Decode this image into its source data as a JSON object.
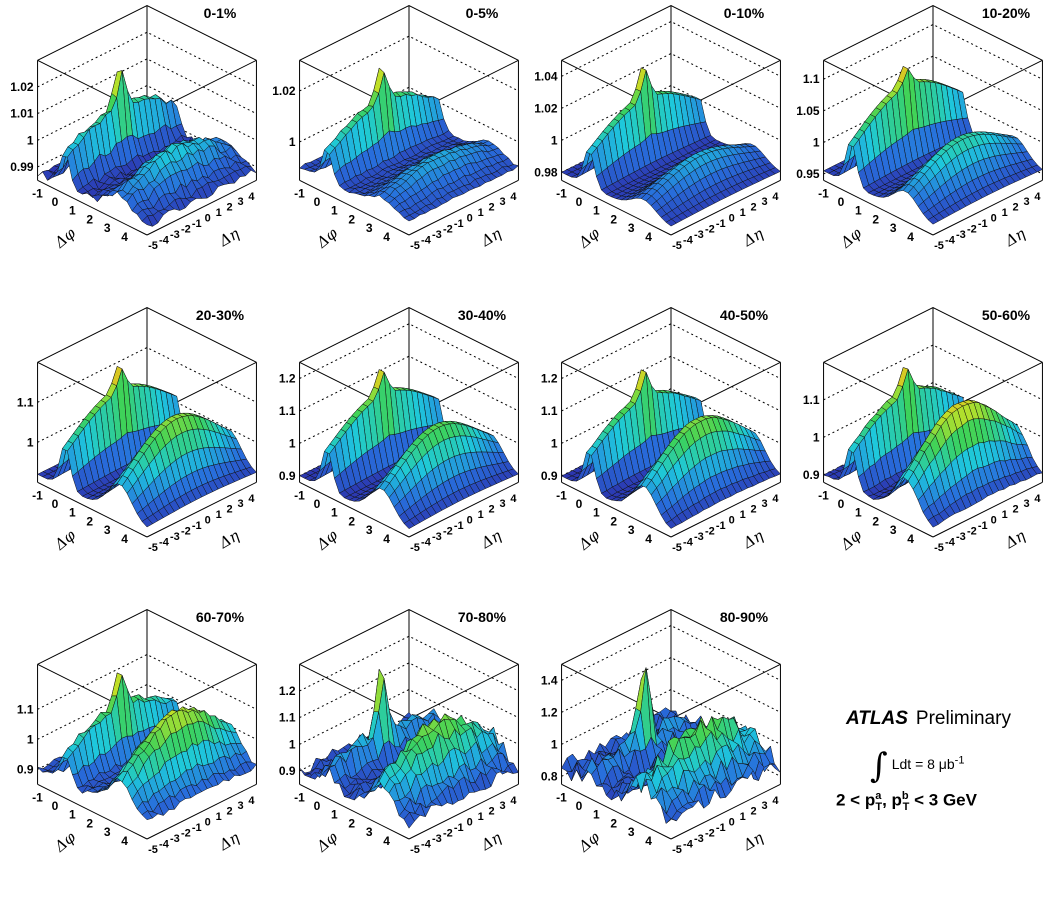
{
  "chart_data": {
    "type": "surface3d",
    "x_axis_label": "Δφ",
    "y_axis_label": "Δη",
    "x_ticks": [
      "-1",
      "0",
      "1",
      "2",
      "3",
      "4"
    ],
    "y_ticks": [
      "-5",
      "-4",
      "-3",
      "-2",
      "-1",
      "0",
      "1",
      "2",
      "3",
      "4"
    ],
    "panels": [
      {
        "title": "0-1%",
        "zticks": [
          "0.99",
          "1",
          "1.01",
          "1.02"
        ],
        "zrange": [
          0.985,
          1.03
        ],
        "near_peak": 1.028,
        "ridge": 1.012,
        "away": 1.003,
        "floor": 0.988,
        "noise": 0.18
      },
      {
        "title": "0-5%",
        "zticks": [
          "1",
          "1.02"
        ],
        "zrange": [
          0.985,
          1.032
        ],
        "near_peak": 1.03,
        "ridge": 1.015,
        "away": 1.0,
        "floor": 0.99,
        "noise": 0.06
      },
      {
        "title": "0-10%",
        "zticks": [
          "0.98",
          "1",
          "1.02",
          "1.04"
        ],
        "zrange": [
          0.975,
          1.05
        ],
        "near_peak": 1.048,
        "ridge": 1.025,
        "away": 1.0,
        "floor": 0.98,
        "noise": 0.0
      },
      {
        "title": "10-20%",
        "zticks": [
          "0.95",
          "1",
          "1.05",
          "1.1"
        ],
        "zrange": [
          0.94,
          1.13
        ],
        "near_peak": 1.125,
        "ridge": 1.09,
        "away": 1.03,
        "floor": 0.955,
        "noise": 0.0
      },
      {
        "title": "20-30%",
        "zticks": [
          "1",
          "1.1"
        ],
        "zrange": [
          0.9,
          1.2
        ],
        "near_peak": 1.2,
        "ridge": 1.13,
        "away": 1.1,
        "floor": 0.92,
        "noise": 0.0
      },
      {
        "title": "30-40%",
        "zticks": [
          "0.9",
          "1",
          "1.1",
          "1.2"
        ],
        "zrange": [
          0.88,
          1.25
        ],
        "near_peak": 1.24,
        "ridge": 1.15,
        "away": 1.1,
        "floor": 0.9,
        "noise": 0.0
      },
      {
        "title": "40-50%",
        "zticks": [
          "0.9",
          "1",
          "1.1",
          "1.2"
        ],
        "zrange": [
          0.88,
          1.25
        ],
        "near_peak": 1.24,
        "ridge": 1.14,
        "away": 1.12,
        "floor": 0.9,
        "noise": 0.02
      },
      {
        "title": "50-60%",
        "zticks": [
          "0.9",
          "1",
          "1.1"
        ],
        "zrange": [
          0.88,
          1.2
        ],
        "near_peak": 1.2,
        "ridge": 1.12,
        "away": 1.13,
        "floor": 0.9,
        "noise": 0.04
      },
      {
        "title": "60-70%",
        "zticks": [
          "0.9",
          "1",
          "1.1"
        ],
        "zrange": [
          0.85,
          1.25
        ],
        "near_peak": 1.24,
        "ridge": 1.1,
        "away": 1.14,
        "floor": 0.9,
        "noise": 0.14
      },
      {
        "title": "70-80%",
        "zticks": [
          "0.9",
          "1",
          "1.1",
          "1.2"
        ],
        "zrange": [
          0.85,
          1.3
        ],
        "near_peak": 1.3,
        "ridge": 1.02,
        "away": 1.14,
        "floor": 0.9,
        "noise": 0.3
      },
      {
        "title": "80-90%",
        "zticks": [
          "0.8",
          "1",
          "1.2",
          "1.4"
        ],
        "zrange": [
          0.75,
          1.5
        ],
        "near_peak": 1.48,
        "ridge": 1.0,
        "away": 1.2,
        "floor": 0.85,
        "noise": 0.45
      }
    ]
  },
  "legend": {
    "experiment": "ATLAS",
    "status": "Preliminary",
    "integral_symbol": "∫",
    "lumi_text": "Ldt = 8 μb",
    "lumi_exp": "-1",
    "pt_prefix": "2 < p",
    "pt_sup_a": "a",
    "pt_sub_a": "T",
    "pt_middle": ", p",
    "pt_sup_b": "b",
    "pt_sub_b": "T",
    "pt_suffix": " < 3 GeV"
  }
}
